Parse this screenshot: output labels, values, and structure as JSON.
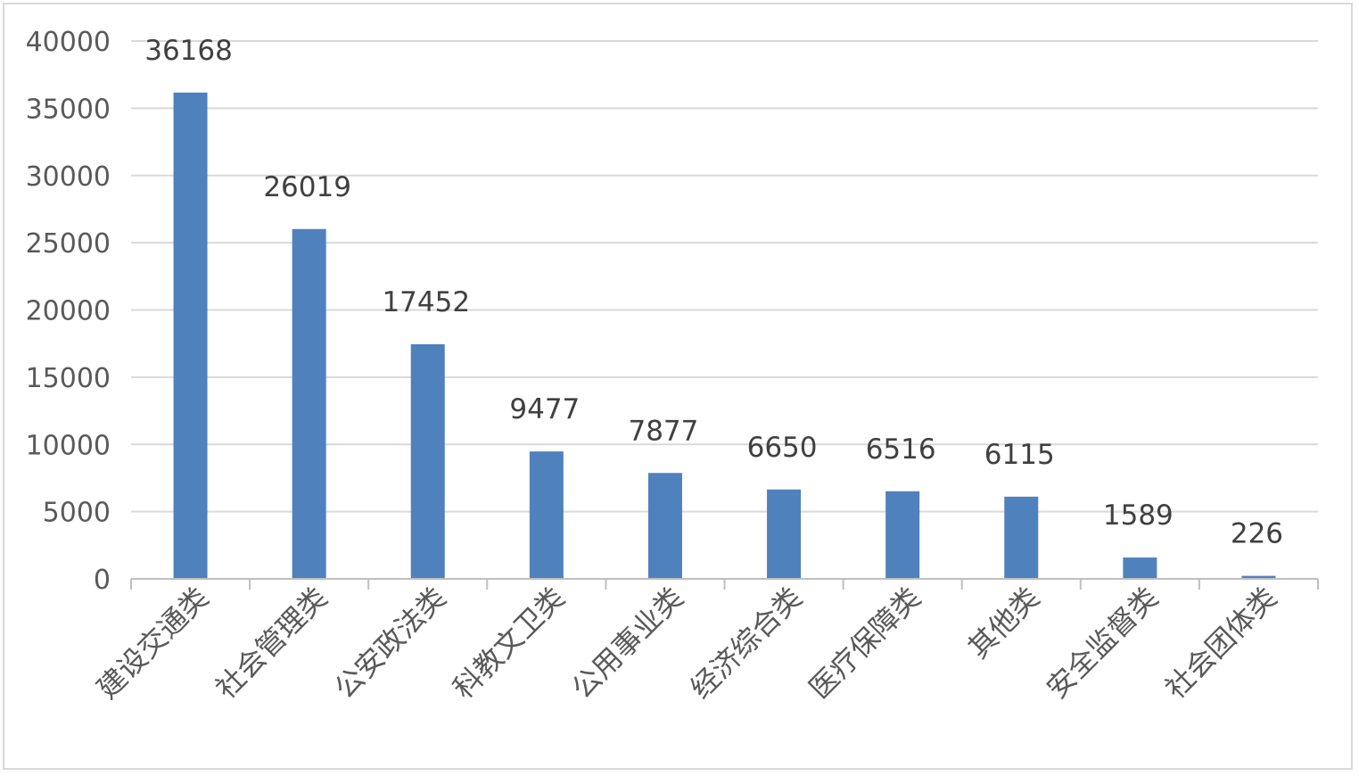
{
  "chart_data": {
    "type": "bar",
    "title": "",
    "xlabel": "",
    "ylabel": "",
    "categories": [
      "建设交通类",
      "社会管理类",
      "公安政法类",
      "科教文卫类",
      "公用事业类",
      "经济综合类",
      "医疗保障类",
      "其他类",
      "安全监督类",
      "社会团体类"
    ],
    "values": [
      36168,
      26019,
      17452,
      9477,
      7877,
      6650,
      6516,
      6115,
      1589,
      226
    ],
    "data_labels": [
      "36168",
      "26019",
      "17452",
      "9477",
      "7877",
      "6650",
      "6516",
      "6115",
      "1589",
      "226"
    ],
    "ylim": [
      0,
      40000
    ],
    "yticks": [
      0,
      5000,
      10000,
      15000,
      20000,
      25000,
      30000,
      35000,
      40000
    ],
    "ytick_labels": [
      "0",
      "5000",
      "10000",
      "15000",
      "20000",
      "25000",
      "30000",
      "35000",
      "40000"
    ],
    "grid": true,
    "legend": "none",
    "bar_color": "#4f81bd",
    "grid_color": "#d9d9d9",
    "axis_color": "#bfbfbf"
  }
}
